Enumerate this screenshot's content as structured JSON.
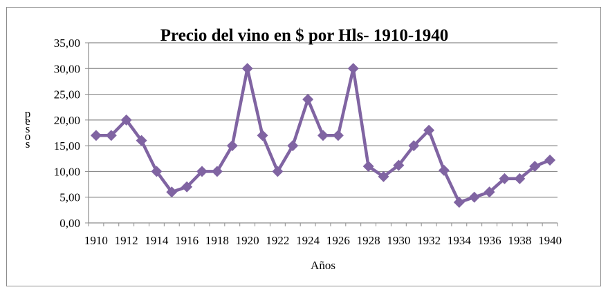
{
  "chart_data": {
    "type": "line",
    "title": "Precio del vino en $ por Hls- 1910-1940",
    "xlabel": "Años",
    "ylabel": "pesos",
    "ylim": [
      0,
      35
    ],
    "y_ticks": [
      "0,00",
      "5,00",
      "10,00",
      "15,00",
      "20,00",
      "25,00",
      "30,00",
      "35,00"
    ],
    "x_tick_labels": [
      "1910",
      "1912",
      "1914",
      "1916",
      "1918",
      "1920",
      "1922",
      "1924",
      "1926",
      "1928",
      "1930",
      "1932",
      "1934",
      "1936",
      "1938",
      "1940"
    ],
    "grid": true,
    "legend": "none",
    "series": [
      {
        "color": "#8064a2",
        "x": [
          1910,
          1911,
          1912,
          1913,
          1914,
          1915,
          1916,
          1917,
          1918,
          1919,
          1920,
          1921,
          1922,
          1923,
          1924,
          1925,
          1926,
          1927,
          1928,
          1929,
          1930,
          1931,
          1932,
          1933,
          1934,
          1935,
          1936,
          1937,
          1938,
          1939,
          1940
        ],
        "values": [
          17.0,
          17.0,
          20.0,
          16.0,
          10.0,
          6.0,
          7.0,
          10.0,
          10.0,
          15.0,
          30.0,
          17.0,
          10.0,
          15.0,
          24.0,
          17.0,
          17.0,
          30.0,
          11.0,
          9.0,
          11.2,
          15.0,
          18.0,
          10.2,
          4.0,
          5.0,
          6.0,
          8.6,
          8.6,
          11.0,
          12.2
        ]
      }
    ]
  }
}
